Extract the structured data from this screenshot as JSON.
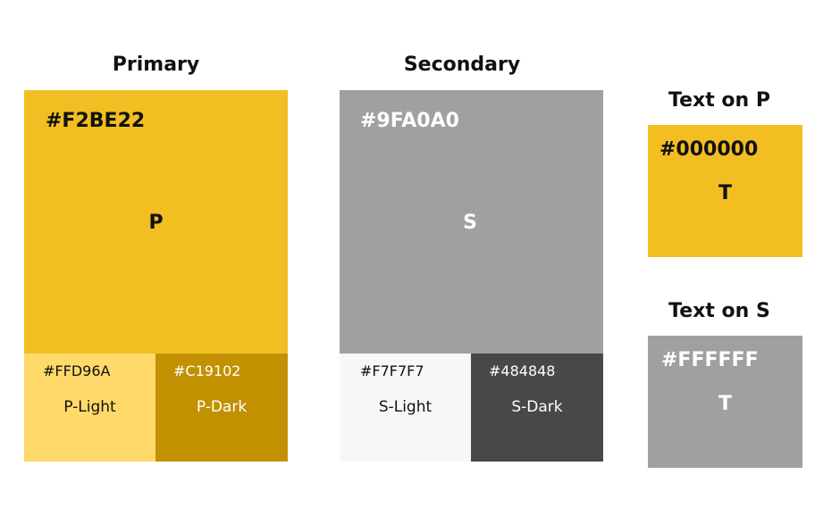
{
  "primary": {
    "title": "Primary",
    "main": {
      "hex": "#F2BE22",
      "letter": "P",
      "color": "#F2BE22",
      "text_color": "#111111"
    },
    "light": {
      "hex": "#FFD96A",
      "name": "P-Light",
      "color": "#FFD96A",
      "text_color": "#111111"
    },
    "dark": {
      "hex": "#C19102",
      "name": "P-Dark",
      "color": "#C19102",
      "text_color": "#FFFFFF"
    }
  },
  "secondary": {
    "title": "Secondary",
    "main": {
      "hex": "#9FA0A0",
      "letter": "S",
      "color": "#9FA0A0",
      "text_color": "#FFFFFF"
    },
    "light": {
      "hex": "#F7F7F7",
      "name": "S-Light",
      "color": "#F7F7F7",
      "text_color": "#111111"
    },
    "dark": {
      "hex": "#484848",
      "name": "S-Dark",
      "color": "#484848",
      "text_color": "#FFFFFF"
    }
  },
  "text_on_p": {
    "title": "Text on P",
    "hex": "#000000",
    "letter": "T",
    "bg_color": "#F2BE22",
    "text_color": "#111111"
  },
  "text_on_s": {
    "title": "Text on S",
    "hex": "#FFFFFF",
    "letter": "T",
    "bg_color": "#9FA0A0",
    "text_color": "#FFFFFF"
  }
}
